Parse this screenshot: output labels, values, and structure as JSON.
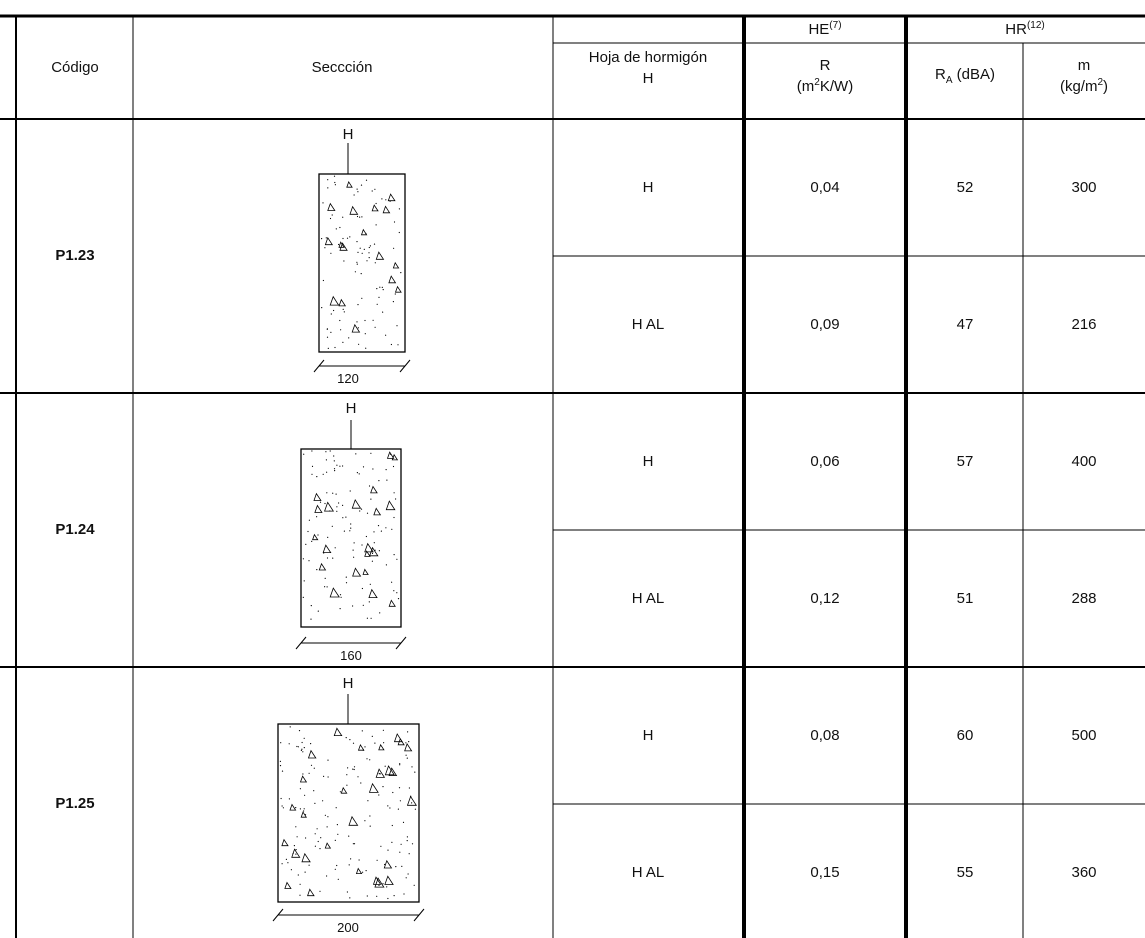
{
  "header": {
    "codigo": "Código",
    "seccion": "Seccción",
    "hoja_line1": "Hoja de hormigón",
    "hoja_line2": "H",
    "he_base": "HE",
    "he_sup": "(7)",
    "hr_base": "HR",
    "hr_sup": "(12)",
    "r_label": "R",
    "r_unit_pre": "(m",
    "r_unit_sup": "2",
    "r_unit_post": "K/W)",
    "ra_base": "R",
    "ra_sub": "A",
    "ra_post": " (dBA)",
    "m_label": "m",
    "m_unit_pre": "(kg/m",
    "m_unit_sup": "2",
    "m_unit_post": ")"
  },
  "rows": [
    {
      "codigo": "P1.23",
      "diagram_label": "H",
      "width_label": "120",
      "variants": [
        {
          "hoja": "H",
          "r": "0,04",
          "ra": "52",
          "m": "300"
        },
        {
          "hoja": "H AL",
          "r": "0,09",
          "ra": "47",
          "m": "216"
        }
      ]
    },
    {
      "codigo": "P1.24",
      "diagram_label": "H",
      "width_label": "160",
      "variants": [
        {
          "hoja": "H",
          "r": "0,06",
          "ra": "57",
          "m": "400"
        },
        {
          "hoja": "H AL",
          "r": "0,12",
          "ra": "51",
          "m": "288"
        }
      ]
    },
    {
      "codigo": "P1.25",
      "diagram_label": "H",
      "width_label": "200",
      "variants": [
        {
          "hoja": "H",
          "r": "0,08",
          "ra": "60",
          "m": "500"
        },
        {
          "hoja": "H AL",
          "r": "0,15",
          "ra": "55",
          "m": "360"
        }
      ]
    }
  ]
}
